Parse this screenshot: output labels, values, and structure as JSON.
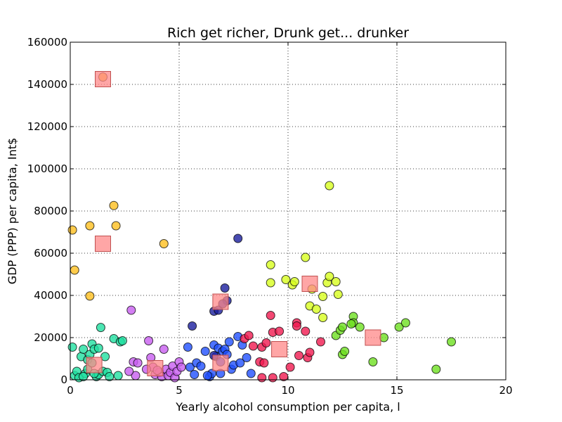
{
  "chart_data": {
    "type": "scatter",
    "title": "Rich get richer, Drunk get... drunker",
    "xlabel": "Yearly alcohol consumption per capita, l",
    "ylabel": "GDP (PPP) per capita, Int$",
    "xlim": [
      0,
      20
    ],
    "ylim": [
      0,
      160000
    ],
    "xticks": [
      "0",
      "5",
      "10",
      "15",
      "20"
    ],
    "yticks": [
      "0",
      "20000",
      "40000",
      "60000",
      "80000",
      "100000",
      "120000",
      "140000",
      "160000"
    ],
    "grid": true,
    "series": [
      {
        "color": "#ffbf1f",
        "points": [
          [
            0.1,
            71000
          ],
          [
            0.2,
            52000
          ],
          [
            0.9,
            73000
          ],
          [
            0.9,
            39700
          ],
          [
            2.0,
            82600
          ],
          [
            2.1,
            73000
          ],
          [
            4.3,
            64500
          ],
          [
            1.5,
            143500
          ]
        ]
      },
      {
        "color": "#1fe0a0",
        "points": [
          [
            0.1,
            15500
          ],
          [
            0.2,
            2000
          ],
          [
            0.3,
            4000
          ],
          [
            0.4,
            1000
          ],
          [
            0.5,
            11000
          ],
          [
            0.6,
            14500
          ],
          [
            0.7,
            3000
          ],
          [
            0.8,
            5000
          ],
          [
            0.8,
            9500
          ],
          [
            0.9,
            12000
          ],
          [
            1.0,
            8000
          ],
          [
            1.0,
            17000
          ],
          [
            1.1,
            14500
          ],
          [
            1.2,
            1500
          ],
          [
            1.3,
            15000
          ],
          [
            1.3,
            2500
          ],
          [
            1.4,
            24800
          ],
          [
            1.5,
            4000
          ],
          [
            1.6,
            11000
          ],
          [
            1.7,
            3500
          ],
          [
            1.8,
            1500
          ],
          [
            2.0,
            19500
          ],
          [
            2.2,
            2000
          ],
          [
            2.3,
            18000
          ],
          [
            2.4,
            18500
          ],
          [
            0.6,
            1500
          ],
          [
            1.1,
            3000
          ]
        ]
      },
      {
        "color": "#c85ef0",
        "points": [
          [
            2.8,
            33000
          ],
          [
            2.9,
            8500
          ],
          [
            3.0,
            2000
          ],
          [
            3.1,
            8000
          ],
          [
            3.6,
            18500
          ],
          [
            3.7,
            10500
          ],
          [
            3.8,
            6000
          ],
          [
            3.9,
            2500
          ],
          [
            4.1,
            3500
          ],
          [
            4.2,
            1500
          ],
          [
            4.3,
            14500
          ],
          [
            4.4,
            5000
          ],
          [
            4.5,
            2000
          ],
          [
            4.6,
            3500
          ],
          [
            4.7,
            6500
          ],
          [
            4.8,
            1000
          ],
          [
            4.9,
            4000
          ],
          [
            5.0,
            8500
          ],
          [
            5.1,
            6000
          ],
          [
            3.5,
            5000
          ],
          [
            2.7,
            4000
          ],
          [
            4.0,
            4500
          ]
        ]
      },
      {
        "color": "#2050ff",
        "points": [
          [
            5.4,
            15500
          ],
          [
            5.5,
            6000
          ],
          [
            5.7,
            2500
          ],
          [
            5.8,
            8000
          ],
          [
            6.0,
            6500
          ],
          [
            6.2,
            13500
          ],
          [
            6.4,
            1500
          ],
          [
            6.5,
            3000
          ],
          [
            6.6,
            16500
          ],
          [
            6.7,
            11000
          ],
          [
            6.8,
            15000
          ],
          [
            6.9,
            8500
          ],
          [
            7.0,
            13500
          ],
          [
            7.1,
            14500
          ],
          [
            7.2,
            12000
          ],
          [
            7.3,
            18000
          ],
          [
            7.4,
            5000
          ],
          [
            7.5,
            7000
          ],
          [
            7.7,
            20500
          ],
          [
            7.8,
            8000
          ],
          [
            7.9,
            16500
          ],
          [
            8.1,
            10500
          ],
          [
            8.3,
            3000
          ],
          [
            6.3,
            2000
          ],
          [
            6.9,
            3000
          ]
        ]
      },
      {
        "color": "#1a1e9e",
        "points": [
          [
            5.6,
            25500
          ],
          [
            6.6,
            32500
          ],
          [
            6.8,
            33000
          ],
          [
            7.1,
            43500
          ],
          [
            7.2,
            37500
          ],
          [
            7.7,
            67000
          ],
          [
            7.0,
            36000
          ],
          [
            6.6,
            11500
          ]
        ]
      },
      {
        "color": "#f01a50",
        "points": [
          [
            8.0,
            19500
          ],
          [
            8.2,
            21000
          ],
          [
            8.4,
            16000
          ],
          [
            8.7,
            8500
          ],
          [
            8.8,
            15500
          ],
          [
            8.9,
            8000
          ],
          [
            9.0,
            17500
          ],
          [
            9.2,
            30500
          ],
          [
            9.3,
            22500
          ],
          [
            9.6,
            23000
          ],
          [
            9.8,
            1500
          ],
          [
            10.1,
            6000
          ],
          [
            10.4,
            27000
          ],
          [
            10.4,
            25500
          ],
          [
            10.5,
            11500
          ],
          [
            10.8,
            23000
          ],
          [
            10.9,
            10500
          ],
          [
            11.0,
            13000
          ],
          [
            11.5,
            18000
          ],
          [
            9.3,
            1000
          ],
          [
            8.8,
            1000
          ]
        ]
      },
      {
        "color": "#d8ff1f",
        "points": [
          [
            9.2,
            54500
          ],
          [
            9.2,
            46000
          ],
          [
            9.9,
            47500
          ],
          [
            10.2,
            45000
          ],
          [
            10.3,
            46500
          ],
          [
            10.8,
            58000
          ],
          [
            11.0,
            35000
          ],
          [
            11.1,
            43000
          ],
          [
            11.3,
            33500
          ],
          [
            11.6,
            39500
          ],
          [
            11.6,
            29500
          ],
          [
            11.8,
            46000
          ],
          [
            11.9,
            49000
          ],
          [
            11.9,
            92000
          ],
          [
            12.2,
            46500
          ],
          [
            12.3,
            40500
          ]
        ]
      },
      {
        "color": "#6ee020",
        "points": [
          [
            12.2,
            21000
          ],
          [
            12.4,
            23500
          ],
          [
            12.5,
            12000
          ],
          [
            12.6,
            13500
          ],
          [
            12.5,
            25000
          ],
          [
            13.0,
            30000
          ],
          [
            13.0,
            27000
          ],
          [
            13.3,
            25000
          ],
          [
            13.9,
            8500
          ],
          [
            14.4,
            20000
          ],
          [
            15.1,
            25000
          ],
          [
            15.4,
            27000
          ],
          [
            16.8,
            5000
          ],
          [
            17.5,
            18000
          ],
          [
            12.9,
            26500
          ]
        ]
      }
    ],
    "averages": {
      "color": "#ff8888",
      "points": [
        [
          1.5,
          142500
        ],
        [
          1.5,
          64500
        ],
        [
          1.1,
          7000
        ],
        [
          3.9,
          5500
        ],
        [
          6.9,
          37000
        ],
        [
          6.9,
          8000
        ],
        [
          9.6,
          14500
        ],
        [
          11.0,
          45500
        ],
        [
          13.9,
          20000
        ]
      ]
    }
  }
}
